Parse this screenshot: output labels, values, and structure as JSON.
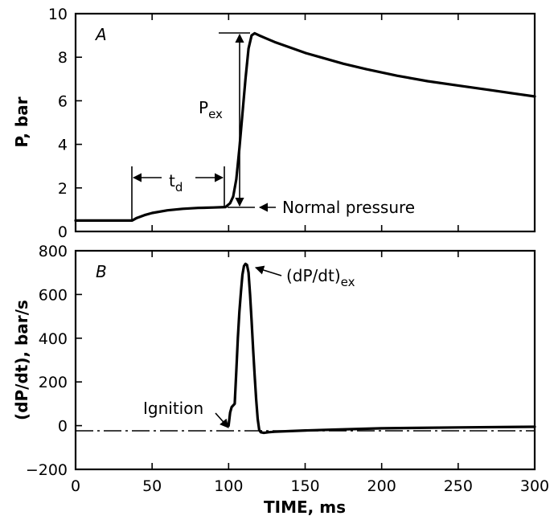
{
  "chart_data": [
    {
      "type": "line",
      "panel_label": "A",
      "ylabel": "P, bar",
      "xlabel": "",
      "xlim": [
        0,
        300
      ],
      "ylim": [
        0,
        10
      ],
      "yticks": [
        0,
        2,
        4,
        6,
        8,
        10
      ],
      "xticks": [
        0,
        50,
        100,
        150,
        200,
        250,
        300
      ],
      "series": [
        {
          "x": [
            0,
            37,
            40,
            45,
            50,
            60,
            70,
            80,
            90,
            98,
            101,
            103,
            105,
            107,
            109,
            111,
            113,
            115,
            117,
            120,
            125,
            130,
            140,
            150,
            160,
            175,
            190,
            210,
            230,
            250,
            270,
            290,
            300
          ],
          "y": [
            0.5,
            0.5,
            0.62,
            0.75,
            0.85,
            0.97,
            1.04,
            1.08,
            1.1,
            1.12,
            1.3,
            1.6,
            2.4,
            3.8,
            5.4,
            7.0,
            8.4,
            9.0,
            9.1,
            9.0,
            8.85,
            8.7,
            8.45,
            8.2,
            8.0,
            7.7,
            7.45,
            7.15,
            6.9,
            6.7,
            6.5,
            6.3,
            6.2
          ]
        }
      ],
      "annotations": {
        "delay": "t",
        "delay_sub": "d",
        "peak": "P",
        "peak_sub": "ex",
        "normal": "Normal pressure"
      }
    },
    {
      "type": "line",
      "panel_label": "B",
      "ylabel": "(dP/dt), bar/s",
      "xlabel": "TIME, ms",
      "xlim": [
        0,
        300
      ],
      "ylim": [
        -200,
        800
      ],
      "yticks": [
        -200,
        0,
        200,
        400,
        600,
        800
      ],
      "xticks": [
        0,
        50,
        100,
        150,
        200,
        250,
        300
      ],
      "series": [
        {
          "x": [
            100,
            101,
            102,
            104,
            105,
            106,
            107,
            108,
            109,
            110,
            111,
            112,
            113,
            114,
            115,
            116,
            117,
            118,
            119,
            120,
            121,
            123,
            126,
            130,
            140,
            150,
            170,
            200,
            250,
            300
          ],
          "y": [
            0,
            60,
            85,
            100,
            250,
            400,
            520,
            610,
            690,
            730,
            740,
            735,
            700,
            600,
            480,
            350,
            230,
            120,
            30,
            -20,
            -30,
            -33,
            -30,
            -28,
            -25,
            -22,
            -18,
            -12,
            -8,
            -5
          ]
        }
      ],
      "annotations": {
        "ignition": "Ignition",
        "peak": "(dP/dt)",
        "peak_sub": "ex"
      }
    }
  ]
}
